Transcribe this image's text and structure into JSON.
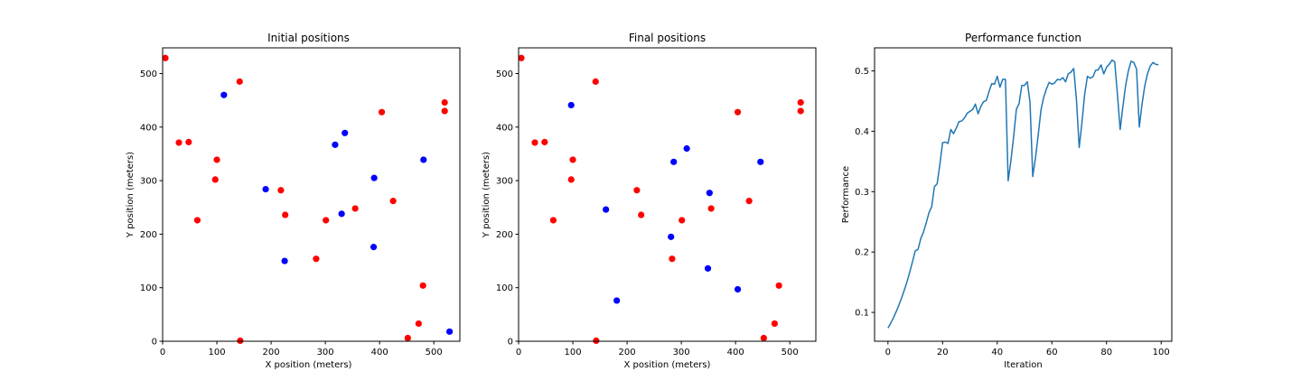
{
  "chart_data": [
    {
      "type": "scatter",
      "title": "Initial positions",
      "xlabel": "X position (meters)",
      "ylabel": "Y position (meters)",
      "xlim": [
        0,
        548
      ],
      "ylim": [
        0,
        548
      ],
      "xticks": [
        0,
        100,
        200,
        300,
        400,
        500
      ],
      "yticks": [
        0,
        100,
        200,
        300,
        400,
        500
      ],
      "grid": false,
      "series": [
        {
          "color": "#ff0000",
          "x": [
            5,
            142,
            30,
            48,
            100,
            97,
            64,
            218,
            226,
            283,
            301,
            355,
            404,
            425,
            520,
            520,
            480,
            472,
            452,
            143
          ],
          "y": [
            529,
            485,
            371,
            372,
            339,
            302,
            226,
            282,
            236,
            154,
            226,
            248,
            428,
            262,
            446,
            430,
            104,
            33,
            6,
            1
          ]
        },
        {
          "color": "#0000ff",
          "x": [
            113,
            190,
            225,
            318,
            336,
            330,
            390,
            389,
            481,
            529
          ],
          "y": [
            460,
            284,
            150,
            367,
            389,
            238,
            305,
            176,
            339,
            18
          ]
        }
      ]
    },
    {
      "type": "scatter",
      "title": "Final positions",
      "xlabel": "X position (meters)",
      "ylabel": "Y position (meters)",
      "xlim": [
        0,
        548
      ],
      "ylim": [
        0,
        548
      ],
      "xticks": [
        0,
        100,
        200,
        300,
        400,
        500
      ],
      "yticks": [
        0,
        100,
        200,
        300,
        400,
        500
      ],
      "grid": false,
      "series": [
        {
          "color": "#ff0000",
          "x": [
            5,
            142,
            30,
            48,
            100,
            97,
            64,
            218,
            226,
            283,
            301,
            355,
            404,
            425,
            520,
            520,
            480,
            472,
            452,
            143
          ],
          "y": [
            529,
            485,
            371,
            372,
            339,
            302,
            226,
            282,
            236,
            154,
            226,
            248,
            428,
            262,
            446,
            430,
            104,
            33,
            6,
            1
          ]
        },
        {
          "color": "#0000ff",
          "x": [
            97,
            161,
            181,
            281,
            286,
            310,
            352,
            349,
            404,
            446
          ],
          "y": [
            441,
            246,
            76,
            195,
            335,
            360,
            277,
            136,
            97,
            335
          ]
        }
      ]
    },
    {
      "type": "line",
      "title": "Performance function",
      "xlabel": "Iteration",
      "ylabel": "Performance",
      "xlim": [
        -4.9,
        103.9
      ],
      "ylim": [
        0.0522,
        0.5382
      ],
      "xticks": [
        0,
        20,
        40,
        60,
        80,
        100
      ],
      "yticks": [
        0.1,
        0.2,
        0.3,
        0.4,
        0.5
      ],
      "grid": false,
      "series": [
        {
          "color": "#1f77b4",
          "x": [
            0,
            1,
            2,
            3,
            4,
            5,
            6,
            7,
            8,
            9,
            10,
            11,
            12,
            13,
            14,
            15,
            16,
            17,
            18,
            19,
            20,
            21,
            22,
            23,
            24,
            25,
            26,
            27,
            28,
            29,
            30,
            31,
            32,
            33,
            34,
            35,
            36,
            37,
            38,
            39,
            40,
            41,
            42,
            43,
            44,
            45,
            46,
            47,
            48,
            49,
            50,
            51,
            52,
            53,
            54,
            55,
            56,
            57,
            58,
            59,
            60,
            61,
            62,
            63,
            64,
            65,
            66,
            67,
            68,
            69,
            70,
            71,
            72,
            73,
            74,
            75,
            76,
            77,
            78,
            79,
            80,
            81,
            82,
            83,
            84,
            85,
            86,
            87,
            88,
            89,
            90,
            91,
            92,
            93,
            94,
            95,
            96,
            97,
            98,
            99
          ],
          "y": [
            0.074,
            0.082,
            0.091,
            0.101,
            0.112,
            0.124,
            0.137,
            0.151,
            0.167,
            0.184,
            0.202,
            0.204,
            0.222,
            0.233,
            0.248,
            0.265,
            0.275,
            0.308,
            0.313,
            0.345,
            0.381,
            0.382,
            0.38,
            0.403,
            0.396,
            0.405,
            0.416,
            0.417,
            0.422,
            0.43,
            0.433,
            0.436,
            0.445,
            0.429,
            0.441,
            0.449,
            0.451,
            0.466,
            0.479,
            0.478,
            0.491,
            0.473,
            0.486,
            0.486,
            0.318,
            0.351,
            0.391,
            0.436,
            0.446,
            0.476,
            0.476,
            0.482,
            0.448,
            0.325,
            0.356,
            0.394,
            0.435,
            0.456,
            0.47,
            0.481,
            0.478,
            0.48,
            0.486,
            0.485,
            0.489,
            0.482,
            0.495,
            0.498,
            0.504,
            0.452,
            0.373,
            0.414,
            0.461,
            0.491,
            0.488,
            0.49,
            0.501,
            0.502,
            0.51,
            0.495,
            0.506,
            0.511,
            0.518,
            0.515,
            0.461,
            0.403,
            0.441,
            0.476,
            0.5,
            0.516,
            0.514,
            0.503,
            0.407,
            0.445,
            0.475,
            0.495,
            0.508,
            0.514,
            0.511,
            0.51
          ]
        }
      ]
    }
  ]
}
